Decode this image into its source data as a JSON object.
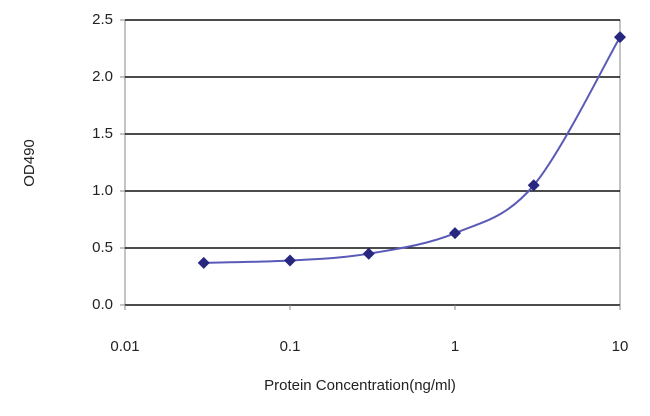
{
  "chart_data": {
    "type": "line",
    "x_label": "Protein Concentration(ng/ml)",
    "y_label": "OD490",
    "x": [
      0.03,
      0.1,
      0.3,
      1,
      3,
      10
    ],
    "series": [
      {
        "color": "#5a5ab8",
        "marker_color": "#27277f",
        "values": [
          0.37,
          0.39,
          0.45,
          0.63,
          1.05,
          2.35
        ]
      }
    ],
    "xlim": [
      0.01,
      10
    ],
    "xscale": "log",
    "xticks": [
      0.01,
      0.1,
      1,
      10
    ],
    "ylim": [
      0,
      2.5
    ],
    "yticks": [
      {
        "value": 0,
        "label": "0.0"
      },
      0.5,
      {
        "value": 1,
        "label": "1.0"
      },
      1.5,
      {
        "value": 2,
        "label": "2.0"
      },
      2.5
    ],
    "grid": true
  }
}
